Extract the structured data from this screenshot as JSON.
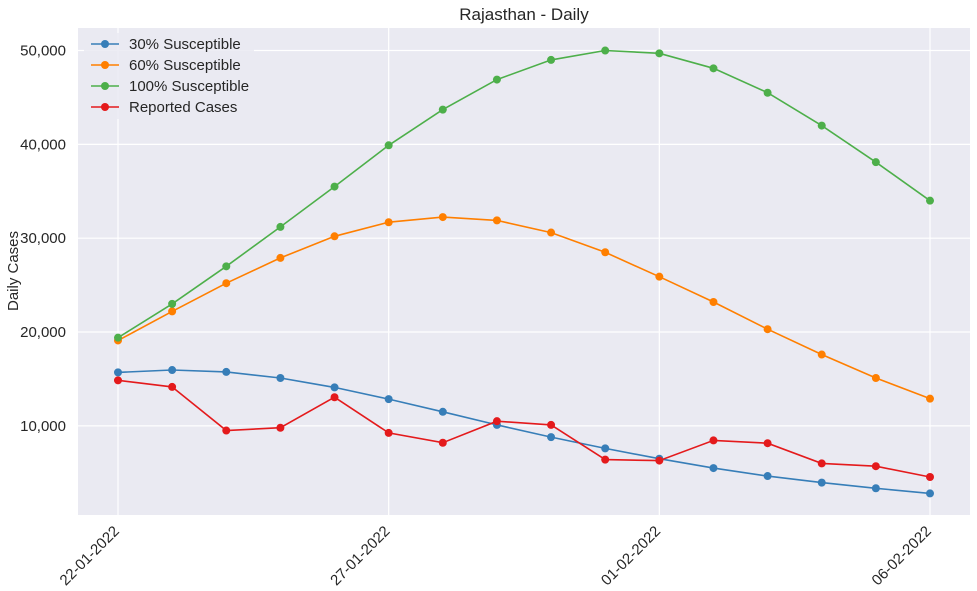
{
  "chart_data": {
    "type": "line",
    "title": "Rajasthan - Daily",
    "xlabel": "",
    "ylabel": "Daily Cases",
    "ylim": [
      500,
      52400
    ],
    "grid": true,
    "legend_position": "top-left",
    "x": [
      "22-01-2022",
      "23-01-2022",
      "24-01-2022",
      "25-01-2022",
      "26-01-2022",
      "27-01-2022",
      "28-01-2022",
      "29-01-2022",
      "30-01-2022",
      "31-01-2022",
      "01-02-2022",
      "02-02-2022",
      "03-02-2022",
      "04-02-2022",
      "05-02-2022",
      "06-02-2022"
    ],
    "x_ticks": [
      "22-01-2022",
      "27-01-2022",
      "01-02-2022",
      "06-02-2022"
    ],
    "x_tick_index": [
      0,
      5,
      10,
      15
    ],
    "y_ticks": [
      10000,
      20000,
      30000,
      40000,
      50000
    ],
    "y_tick_labels": [
      "10,000",
      "20,000",
      "30,000",
      "40,000",
      "50,000"
    ],
    "series": [
      {
        "name": "30% Susceptible",
        "color": "#377eb8",
        "values": [
          15700,
          15950,
          15750,
          15100,
          14100,
          12850,
          11500,
          10100,
          8800,
          7600,
          6500,
          5500,
          4650,
          3950,
          3350,
          2800
        ]
      },
      {
        "name": "60% Susceptible",
        "color": "#ff7f00",
        "values": [
          19100,
          22200,
          25200,
          27900,
          30200,
          31700,
          32250,
          31900,
          30600,
          28500,
          25900,
          23200,
          20300,
          17600,
          15100,
          12900
        ]
      },
      {
        "name": "100% Susceptible",
        "color": "#4daf4a",
        "values": [
          19400,
          23000,
          27000,
          31200,
          35500,
          39900,
          43700,
          46900,
          49000,
          50000,
          49700,
          48100,
          45500,
          42000,
          38100,
          34000
        ]
      },
      {
        "name": "Reported Cases",
        "color": "#e41a1c",
        "values": [
          14850,
          14150,
          9500,
          9800,
          13050,
          9250,
          8200,
          10500,
          10100,
          6400,
          6300,
          8450,
          8150,
          6000,
          5700,
          4550
        ]
      }
    ]
  }
}
